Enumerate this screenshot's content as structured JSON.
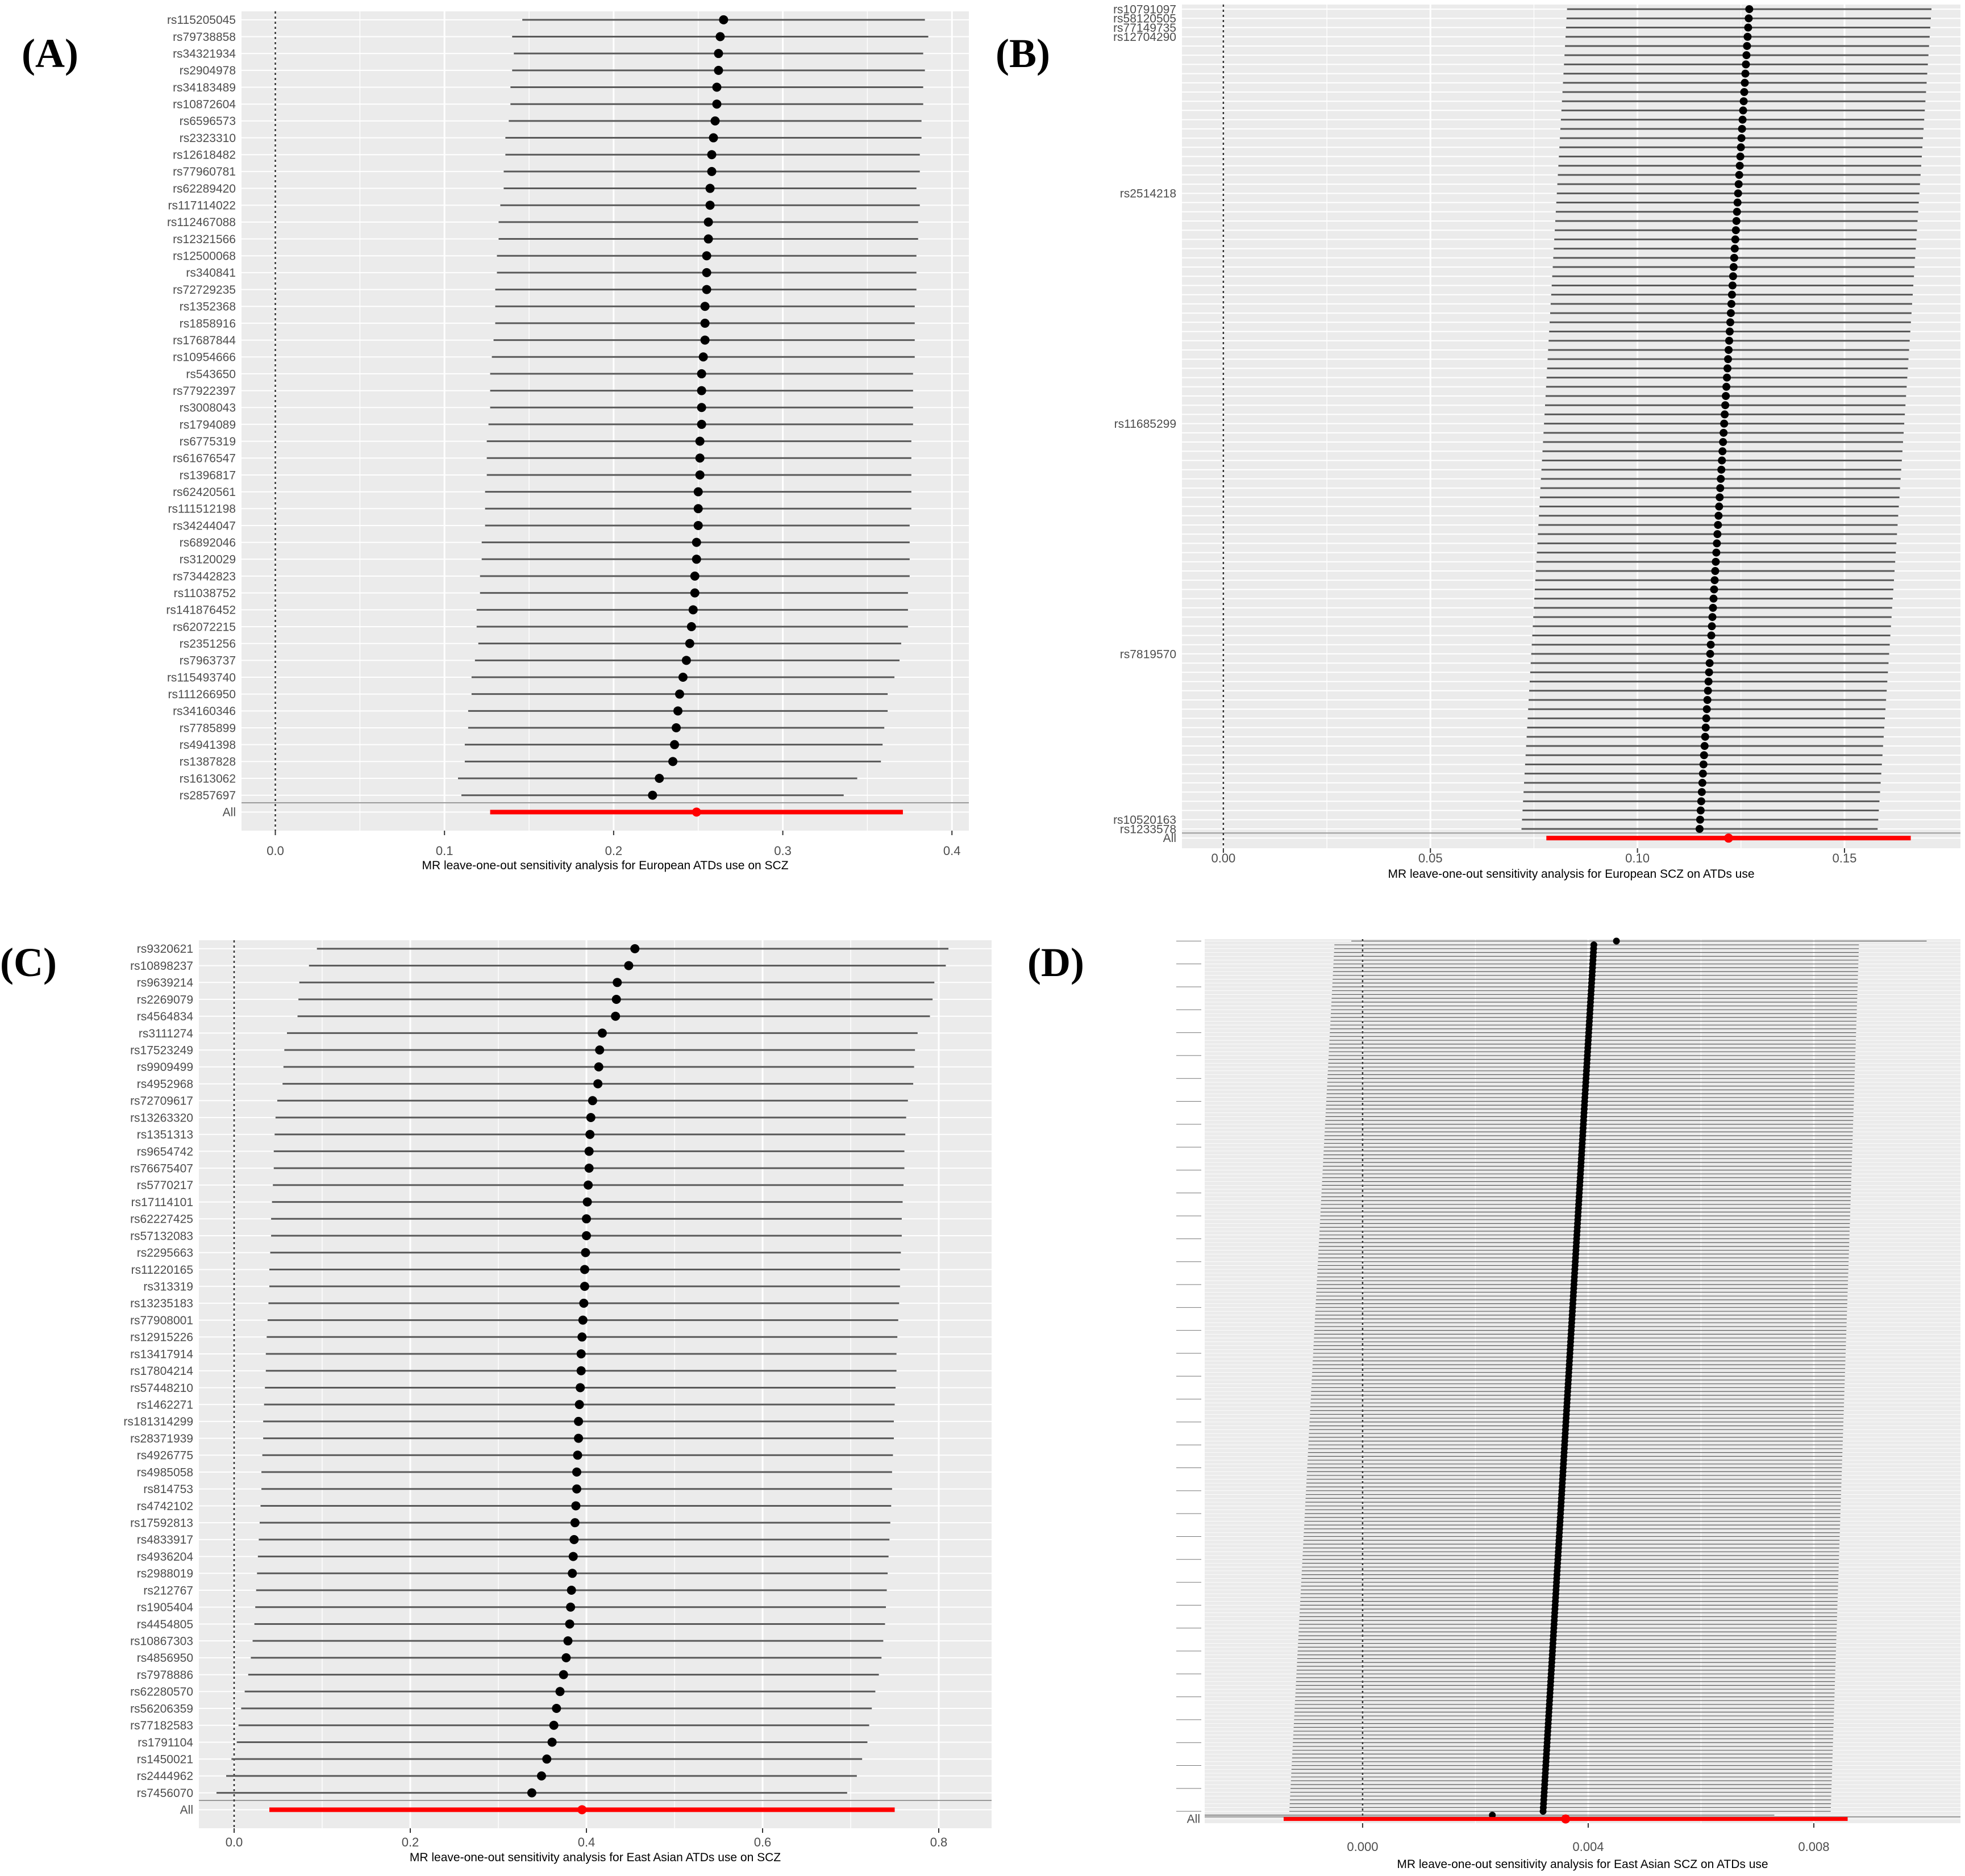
{
  "colors": {
    "panel_bg": "#ebebeb",
    "grid": "#ffffff",
    "ci_line": "#595959",
    "point": "#000000",
    "overall": "#ff0000",
    "null_line": "#333333"
  },
  "chart_data": [
    {
      "type": "forest",
      "panel_letter": "(A)",
      "xlabel": "MR leave-one-out sensitivity analysis for European ATDs use on SCZ",
      "xlim": [
        -0.02,
        0.41
      ],
      "xticks": [
        0.0,
        0.1,
        0.2,
        0.3,
        0.4
      ],
      "xtick_labels": [
        "0.0",
        "0.1",
        "0.2",
        "0.3",
        "0.4"
      ],
      "snps": [
        "rs115205045",
        "rs79738858",
        "rs34321934",
        "rs2904978",
        "rs34183489",
        "rs10872604",
        "rs6596573",
        "rs2323310",
        "rs12618482",
        "rs77960781",
        "rs62289420",
        "rs117114022",
        "rs112467088",
        "rs12321566",
        "rs12500068",
        "rs340841",
        "rs72729235",
        "rs1352368",
        "rs1858916",
        "rs17687844",
        "rs10954666",
        "rs543650",
        "rs77922397",
        "rs3008043",
        "rs1794089",
        "rs6775319",
        "rs61676547",
        "rs1396817",
        "rs62420561",
        "rs111512198",
        "rs34244047",
        "rs6892046",
        "rs3120029",
        "rs73442823",
        "rs11038752",
        "rs141876452",
        "rs62072215",
        "rs2351256",
        "rs7963737",
        "rs115493740",
        "rs111266950",
        "rs34160346",
        "rs7785899",
        "rs4941398",
        "rs1387828",
        "rs1613062",
        "rs2857697"
      ],
      "estimates": [
        0.265,
        0.263,
        0.262,
        0.262,
        0.261,
        0.261,
        0.26,
        0.259,
        0.258,
        0.258,
        0.257,
        0.257,
        0.256,
        0.256,
        0.255,
        0.255,
        0.255,
        0.254,
        0.254,
        0.254,
        0.253,
        0.252,
        0.252,
        0.252,
        0.252,
        0.251,
        0.251,
        0.251,
        0.25,
        0.25,
        0.25,
        0.249,
        0.249,
        0.248,
        0.248,
        0.247,
        0.246,
        0.245,
        0.243,
        0.241,
        0.239,
        0.238,
        0.237,
        0.236,
        0.235,
        0.227,
        0.223
      ],
      "lower": [
        0.146,
        0.14,
        0.141,
        0.14,
        0.139,
        0.139,
        0.138,
        0.136,
        0.136,
        0.135,
        0.135,
        0.133,
        0.132,
        0.132,
        0.131,
        0.131,
        0.13,
        0.13,
        0.13,
        0.129,
        0.128,
        0.127,
        0.127,
        0.127,
        0.126,
        0.125,
        0.125,
        0.125,
        0.124,
        0.124,
        0.124,
        0.122,
        0.122,
        0.121,
        0.121,
        0.119,
        0.119,
        0.12,
        0.118,
        0.116,
        0.116,
        0.114,
        0.114,
        0.112,
        0.112,
        0.108,
        0.11
      ],
      "upper": [
        0.384,
        0.386,
        0.383,
        0.384,
        0.383,
        0.383,
        0.382,
        0.382,
        0.381,
        0.381,
        0.379,
        0.381,
        0.38,
        0.38,
        0.379,
        0.379,
        0.379,
        0.378,
        0.378,
        0.378,
        0.378,
        0.377,
        0.377,
        0.377,
        0.377,
        0.376,
        0.376,
        0.376,
        0.376,
        0.376,
        0.375,
        0.375,
        0.375,
        0.375,
        0.374,
        0.374,
        0.374,
        0.37,
        0.369,
        0.366,
        0.362,
        0.362,
        0.36,
        0.359,
        0.358,
        0.344,
        0.336
      ],
      "all_label": "All",
      "all_estimate": 0.249,
      "all_lower": 0.127,
      "all_upper": 0.371
    },
    {
      "type": "forest",
      "panel_letter": "(B)",
      "xlabel": "MR leave-one-out sensitivity analysis for European SCZ on ATDs use",
      "xlim": [
        -0.01,
        0.178
      ],
      "xticks": [
        0.0,
        0.05,
        0.1,
        0.15
      ],
      "xtick_labels": [
        "0.00",
        "0.05",
        "0.10",
        "0.15"
      ],
      "n_snps": 90,
      "snps": [
        "rs10791097",
        "rs58120505",
        "rs77149735",
        "rs12704290",
        "rs2514218",
        "rs11685299",
        "rs7819570",
        "rs10520163",
        "rs1233578"
      ],
      "snp_label_rows": [
        0,
        1,
        2,
        3,
        20,
        45,
        70,
        88,
        89
      ],
      "estimate_range": [
        0.127,
        0.115
      ],
      "half_width_range": [
        0.044,
        0.043
      ],
      "all_label": "All",
      "all_estimate": 0.122,
      "all_lower": 0.078,
      "all_upper": 0.166
    },
    {
      "type": "forest",
      "panel_letter": "(C)",
      "xlabel": "MR leave-one-out sensitivity analysis for East Asian ATDs use on SCZ",
      "xlim": [
        -0.04,
        0.86
      ],
      "xticks": [
        0.0,
        0.2,
        0.4,
        0.6,
        0.8
      ],
      "xtick_labels": [
        "0.0",
        "0.2",
        "0.4",
        "0.6",
        "0.8"
      ],
      "snps": [
        "rs9320621",
        "rs10898237",
        "rs9639214",
        "rs2269079",
        "rs4564834",
        "rs3111274",
        "rs17523249",
        "rs9909499",
        "rs4952968",
        "rs72709617",
        "rs13263320",
        "rs1351313",
        "rs9654742",
        "rs76675407",
        "rs5770217",
        "rs17114101",
        "rs62227425",
        "rs57132083",
        "rs2295663",
        "rs11220165",
        "rs313319",
        "rs13235183",
        "rs77908001",
        "rs12915226",
        "rs13417914",
        "rs17804214",
        "rs57448210",
        "rs1462271",
        "rs181314299",
        "rs28371939",
        "rs4926775",
        "rs4985058",
        "rs814753",
        "rs4742102",
        "rs17592813",
        "rs4833917",
        "rs4936204",
        "rs2988019",
        "rs212767",
        "rs1905404",
        "rs4454805",
        "rs10867303",
        "rs4856950",
        "rs7978886",
        "rs62280570",
        "rs56206359",
        "rs77182583",
        "rs1791104",
        "rs1450021",
        "rs2444962",
        "rs7456070"
      ],
      "estimates": [
        0.455,
        0.448,
        0.435,
        0.434,
        0.433,
        0.418,
        0.415,
        0.414,
        0.413,
        0.407,
        0.405,
        0.404,
        0.403,
        0.403,
        0.402,
        0.401,
        0.4,
        0.4,
        0.399,
        0.398,
        0.398,
        0.397,
        0.396,
        0.395,
        0.394,
        0.394,
        0.393,
        0.392,
        0.391,
        0.391,
        0.39,
        0.389,
        0.389,
        0.388,
        0.387,
        0.386,
        0.385,
        0.384,
        0.383,
        0.382,
        0.381,
        0.379,
        0.377,
        0.374,
        0.37,
        0.366,
        0.363,
        0.361,
        0.355,
        0.349,
        0.338
      ],
      "lower": [
        0.094,
        0.085,
        0.074,
        0.073,
        0.072,
        0.06,
        0.057,
        0.056,
        0.055,
        0.049,
        0.047,
        0.046,
        0.045,
        0.045,
        0.044,
        0.043,
        0.042,
        0.042,
        0.041,
        0.04,
        0.04,
        0.039,
        0.038,
        0.037,
        0.036,
        0.036,
        0.035,
        0.034,
        0.033,
        0.033,
        0.032,
        0.031,
        0.031,
        0.03,
        0.029,
        0.028,
        0.027,
        0.026,
        0.025,
        0.024,
        0.023,
        0.021,
        0.019,
        0.016,
        0.012,
        0.008,
        0.005,
        0.003,
        -0.003,
        -0.009,
        -0.02
      ],
      "upper": [
        0.811,
        0.808,
        0.795,
        0.793,
        0.79,
        0.776,
        0.773,
        0.772,
        0.771,
        0.765,
        0.763,
        0.762,
        0.761,
        0.761,
        0.76,
        0.759,
        0.758,
        0.758,
        0.757,
        0.756,
        0.756,
        0.755,
        0.754,
        0.753,
        0.752,
        0.752,
        0.751,
        0.75,
        0.749,
        0.749,
        0.748,
        0.747,
        0.747,
        0.746,
        0.745,
        0.744,
        0.743,
        0.742,
        0.741,
        0.74,
        0.739,
        0.737,
        0.735,
        0.732,
        0.728,
        0.724,
        0.721,
        0.719,
        0.713,
        0.707,
        0.696
      ],
      "all_label": "All",
      "all_estimate": 0.395,
      "all_lower": 0.04,
      "all_upper": 0.75
    },
    {
      "type": "forest",
      "panel_letter": "(D)",
      "xlabel": "MR leave-one-out sensitivity analysis for East Asian SCZ on ATDs use",
      "xlim": [
        -0.0028,
        0.0106
      ],
      "xticks": [
        0.0,
        0.004,
        0.008
      ],
      "xtick_labels": [
        "0.000",
        "0.004",
        "0.008"
      ],
      "n_snps": 230,
      "first_snp_estimate": 0.0045,
      "first_snp_lower": -0.0002,
      "first_snp_upper": 0.01,
      "estimate_range": [
        0.0041,
        0.0032
      ],
      "lower_range": [
        -0.0005,
        -0.0013
      ],
      "upper_range": [
        0.0088,
        0.0083
      ],
      "last_snp_estimate": 0.0023,
      "last_snp_lower": -0.0028,
      "last_snp_upper": 0.0073,
      "all_label": "All",
      "all_estimate": 0.0036,
      "all_lower": -0.0014,
      "all_upper": 0.0086
    }
  ]
}
